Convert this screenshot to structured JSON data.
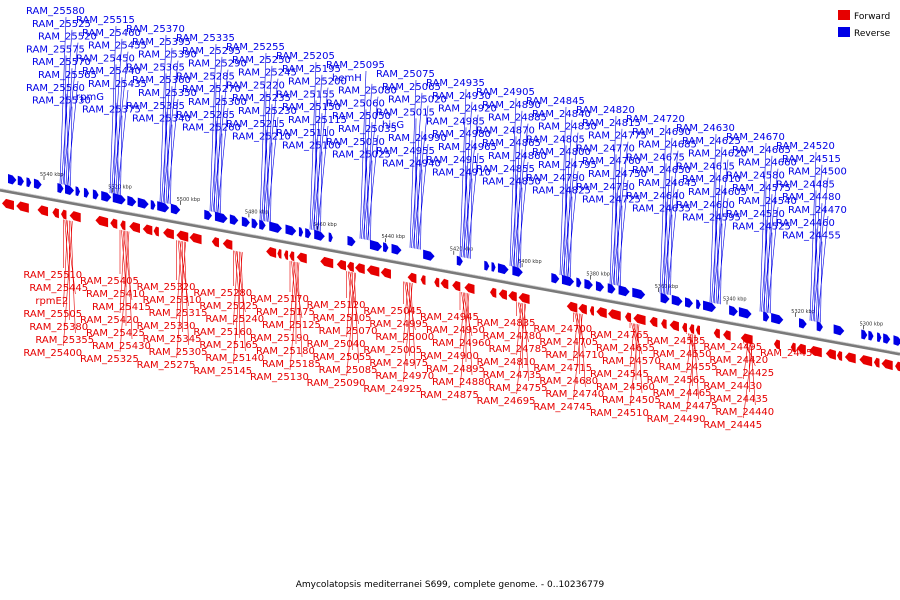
{
  "colors": {
    "forward": "#e60000",
    "reverse": "#0000e6",
    "backbone": "#808080"
  },
  "legend": {
    "forward_label": "Forward",
    "reverse_label": "Reverse"
  },
  "caption": "Amycolatopsis mediterranei S699, complete genome. - 0..10236779",
  "ticks": [
    "5540 kbp",
    "5520 kbp",
    "5500 kbp",
    "5480 kbp",
    "5460 kbp",
    "5440 kbp",
    "5420 kbp",
    "5400 kbp",
    "5380 kbp",
    "5360 kbp",
    "5340 kbp",
    "5320 kbp",
    "5300 kbp"
  ],
  "reverse_genes": [
    "RAM_25580",
    "RAM_25525",
    "RAM_25520",
    "RAM_25575",
    "RAM_25570",
    "RAM_25565",
    "RAM_25560",
    "RAM_25530",
    "RAM_25515",
    "RAM_25460",
    "RAM_25455",
    "RAM_25450",
    "RAM_25440",
    "RAM_25435",
    "rpmG",
    "RAM_25375",
    "RAM_25370",
    "RAM_25395",
    "RAM_25390",
    "RAM_25365",
    "RAM_25360",
    "RAM_25350",
    "RAM_25385",
    "RAM_25340",
    "RAM_25335",
    "RAM_25295",
    "RAM_25290",
    "RAM_25285",
    "RAM_25270",
    "RAM_25300",
    "RAM_25265",
    "RAM_25260",
    "RAM_25255",
    "RAM_25250",
    "RAM_25245",
    "RAM_25220",
    "RAM_25235",
    "RAM_25230",
    "RAM_25215",
    "RAM_25210",
    "RAM_25205",
    "RAM_25195",
    "RAM_25200",
    "RAM_25155",
    "RAM_25150",
    "RAM_25115",
    "RAM_25110",
    "RAM_25100",
    "RAM_25095",
    "hemH",
    "RAM_25080",
    "RAM_25060",
    "RAM_25050",
    "RAM_25035",
    "RAM_25030",
    "RAM_25025",
    "RAM_25075",
    "RAM_25065",
    "RAM_25020",
    "RAM_25015",
    "hisG",
    "RAM_24990",
    "RAM_24955",
    "RAM_24940",
    "RAM_24935",
    "RAM_24930",
    "RAM_24920",
    "RAM_24985",
    "RAM_24980",
    "RAM_24965",
    "RAM_24915",
    "RAM_24910",
    "RAM_24905",
    "RAM_24890",
    "RAM_24885",
    "RAM_24870",
    "RAM_24865",
    "RAM_24860",
    "RAM_24855",
    "RAM_24850",
    "RAM_24845",
    "RAM_24840",
    "RAM_24830",
    "RAM_24805",
    "RAM_24800",
    "RAM_24795",
    "RAM_24790",
    "RAM_24825",
    "RAM_24820",
    "RAM_24815",
    "RAM_24775",
    "RAM_24770",
    "RAM_24760",
    "RAM_24750",
    "RAM_24730",
    "RAM_24725",
    "RAM_24720",
    "RAM_24690",
    "RAM_24685",
    "RAM_24675",
    "RAM_24650",
    "RAM_24645",
    "RAM_24640",
    "RAM_24635",
    "RAM_24630",
    "RAM_24625",
    "RAM_24620",
    "RAM_24615",
    "RAM_24610",
    "RAM_24605",
    "RAM_24600",
    "RAM_24595",
    "RAM_24670",
    "RAM_24665",
    "RAM_24660",
    "RAM_24580",
    "RAM_24575",
    "RAM_24540",
    "RAM_24530",
    "RAM_24525",
    "RAM_24520",
    "RAM_24515",
    "RAM_24500",
    "RAM_24485",
    "RAM_24480",
    "RAM_24470",
    "RAM_24460",
    "RAM_24455"
  ],
  "forward_genes": [
    "RAM_25510",
    "RAM_25445",
    "rpmE2",
    "RAM_25505",
    "RAM_25380",
    "RAM_25355",
    "RAM_25400",
    "RAM_25405",
    "RAM_25410",
    "RAM_25415",
    "RAM_25420",
    "RAM_25425",
    "RAM_25430",
    "RAM_25325",
    "RAM_25320",
    "RAM_25310",
    "RAM_25315",
    "RAM_25330",
    "RAM_25345",
    "RAM_25305",
    "RAM_25275",
    "RAM_25280",
    "RAM_25225",
    "RAM_25240",
    "RAM_25160",
    "RAM_25165",
    "RAM_25140",
    "RAM_25145",
    "RAM_25170",
    "RAM_25175",
    "RAM_25125",
    "RAM_25190",
    "RAM_25180",
    "RAM_25185",
    "RAM_25130",
    "RAM_25120",
    "RAM_25105",
    "RAM_25070",
    "RAM_25040",
    "RAM_25055",
    "RAM_25085",
    "RAM_25090",
    "RAM_25045",
    "RAM_24995",
    "RAM_25000",
    "RAM_25005",
    "RAM_24975",
    "RAM_24970",
    "RAM_24925",
    "RAM_24945",
    "RAM_24950",
    "RAM_24960",
    "RAM_24900",
    "RAM_24895",
    "RAM_24880",
    "RAM_24875",
    "RAM_24835",
    "RAM_24780",
    "RAM_24785",
    "RAM_24810",
    "RAM_24735",
    "RAM_24755",
    "RAM_24695",
    "RAM_24700",
    "RAM_24705",
    "RAM_24710",
    "RAM_24715",
    "RAM_24680",
    "RAM_24740",
    "RAM_24745",
    "RAM_24765",
    "RAM_24655",
    "RAM_24570",
    "RAM_24545",
    "RAM_24560",
    "RAM_24505",
    "RAM_24510",
    "RAM_24535",
    "RAM_24550",
    "RAM_24555",
    "RAM_24565",
    "RAM_24465",
    "RAM_24475",
    "RAM_24490",
    "RAM_24495",
    "RAM_24420",
    "RAM_24425",
    "RAM_24430",
    "RAM_24435",
    "RAM_24440",
    "RAM_24445",
    "RAM_24450"
  ]
}
